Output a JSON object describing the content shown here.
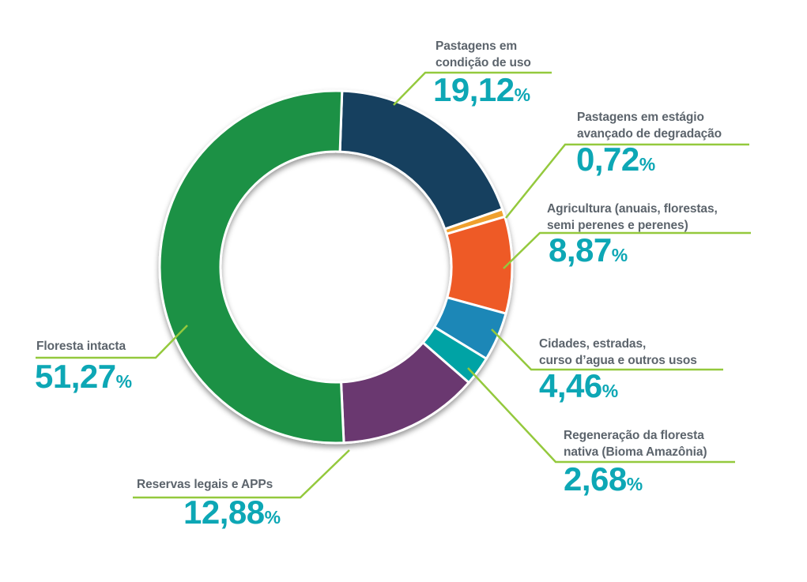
{
  "chart_data": {
    "type": "pie",
    "subtype": "donut",
    "title": "",
    "unit": "%",
    "decimal_separator": ",",
    "total": 100,
    "legend_position": "callout-labels",
    "slices": [
      {
        "label": "Pastagens em\ncondição de uso",
        "value": 19.12,
        "pct": "19,12",
        "color": "#143f5f"
      },
      {
        "label": "Pastagens em estágio\navançado de degradação",
        "value": 0.72,
        "pct": "0,72",
        "color": "#efa02e"
      },
      {
        "label": "Agricultura (anuais, florestas,\nsemi perenes e perenes)",
        "value": 8.87,
        "pct": "8,87",
        "color": "#ee5a28"
      },
      {
        "label": "Cidades, estradas,\ncurso d’agua e outros usos",
        "value": 4.46,
        "pct": "4,46",
        "color": "#1e87b7"
      },
      {
        "label": "Regeneração da floresta\nnativa (Bioma Amazônia)",
        "value": 2.68,
        "pct": "2,68",
        "color": "#00a3a5"
      },
      {
        "label": "Reservas legais e APPs",
        "value": 12.88,
        "pct": "12,88",
        "color": "#6a396f"
      },
      {
        "label": "Floresta intacta",
        "value": 51.27,
        "pct": "51,27",
        "color": "#1a9144"
      }
    ]
  },
  "style": {
    "label_color": "#5c646c",
    "percent_color": "#0da7b5",
    "leader_color": "#94c93d",
    "slice_gap_color": "#ffffff"
  }
}
